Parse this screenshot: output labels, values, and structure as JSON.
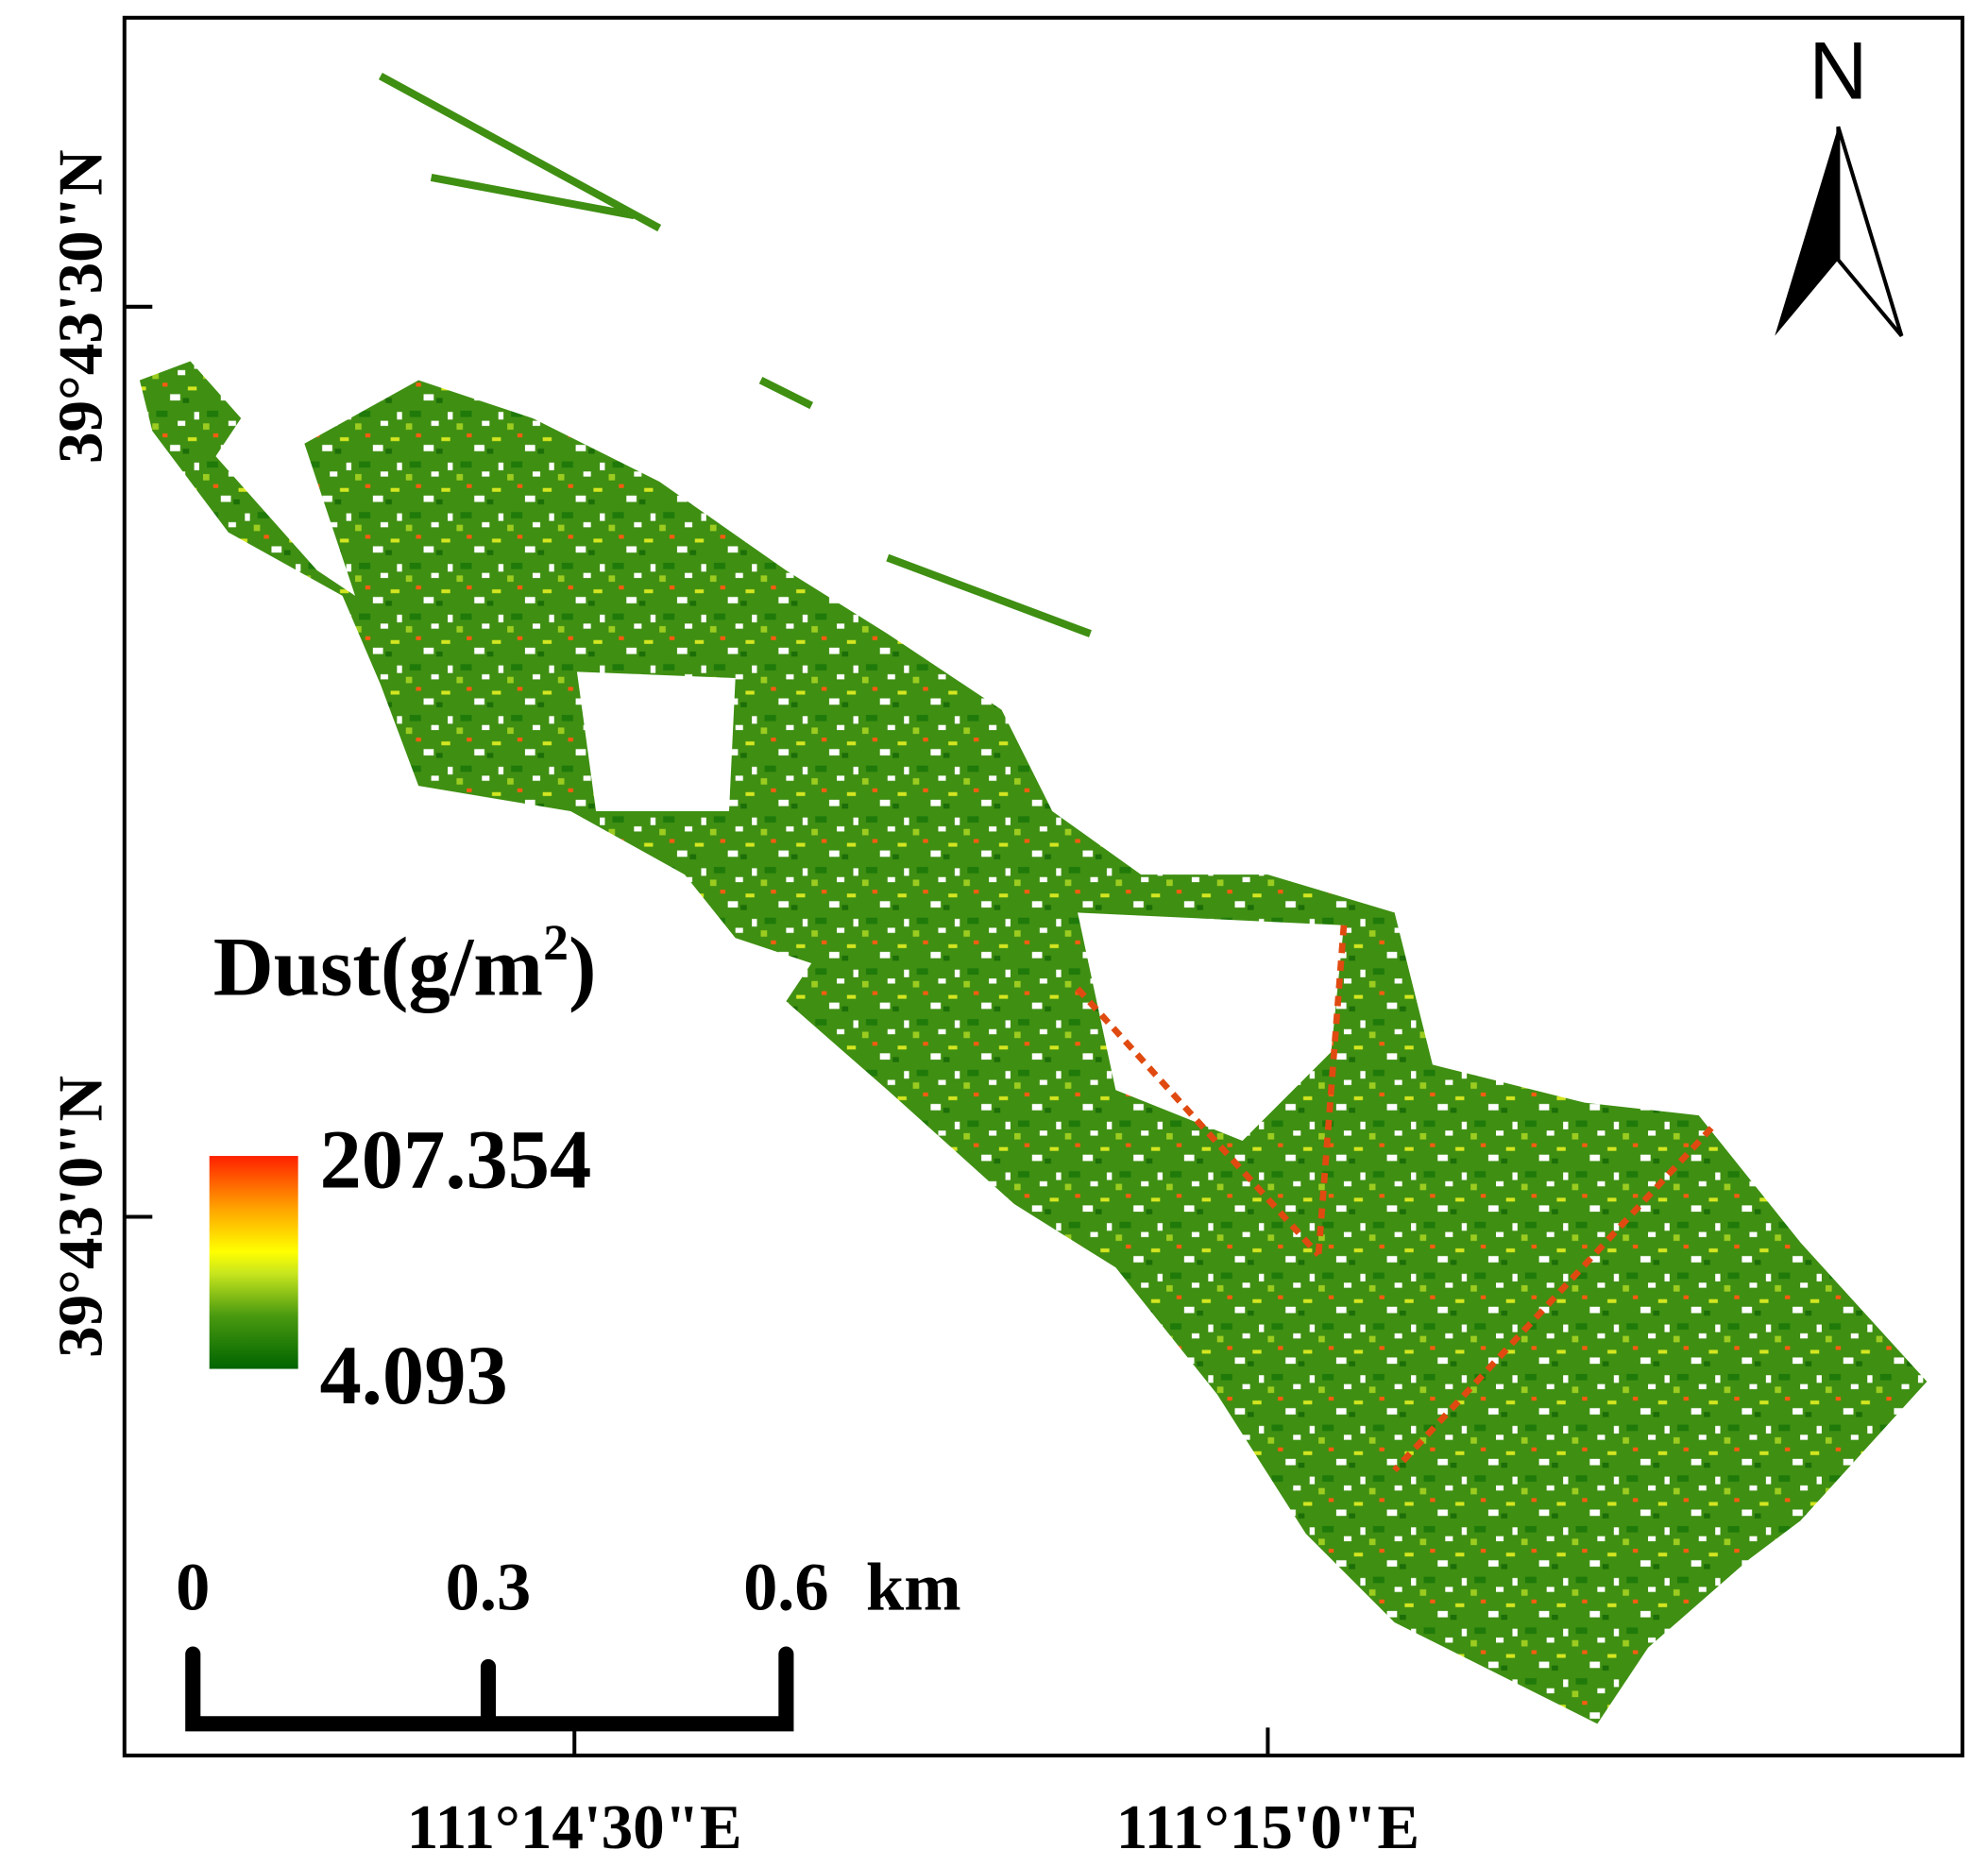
{
  "map": {
    "north_arrow": "N",
    "latitude_labels": [
      "39°43'30\"N",
      "39°43'0\"N"
    ],
    "longitude_labels": [
      "111°14'30\"E",
      "111°15'0\"E"
    ],
    "legend": {
      "title": "Dust(g/m",
      "title_superscript": "2",
      "title_suffix": ")",
      "max": 207.354,
      "min": 4.093
    },
    "scale_bar": {
      "labels": [
        0,
        0.3,
        0.6
      ],
      "unit": "km"
    }
  }
}
